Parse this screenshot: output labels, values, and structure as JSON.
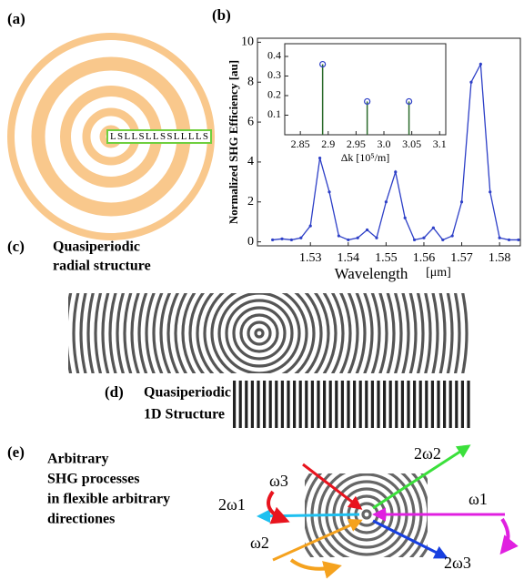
{
  "panels": {
    "a": {
      "label": "(a)",
      "sequence": "LSLLSLLSSLLLLS"
    },
    "b": {
      "label": "(b)"
    },
    "c": {
      "label": "(c)",
      "line1": "Quasiperiodic",
      "line2": "radial  structure"
    },
    "d": {
      "label": "(d)",
      "line1": "Quasiperiodic",
      "line2": "1D Structure"
    },
    "e": {
      "label": "(e)",
      "line1": "Arbitrary",
      "line2": "SHG processes",
      "line3": "in flexible arbitrary",
      "line4": "directiones",
      "omegas": [
        "ω3",
        "2ω2",
        "ω1",
        "2ω1",
        "ω2",
        "2ω3"
      ]
    }
  },
  "chart_data": [
    {
      "type": "line",
      "xlabel": "Wavelength",
      "xunit": "[μm]",
      "ylabel": "Normalized  SHG Efficiency [au]",
      "x": [
        1.52,
        1.5225,
        1.525,
        1.5275,
        1.53,
        1.5325,
        1.535,
        1.5375,
        1.54,
        1.5425,
        1.545,
        1.5475,
        1.55,
        1.5525,
        1.555,
        1.5575,
        1.56,
        1.5625,
        1.565,
        1.5675,
        1.57,
        1.5725,
        1.575,
        1.5775,
        1.58,
        1.5825,
        1.585
      ],
      "values": [
        0.1,
        0.15,
        0.1,
        0.2,
        0.8,
        4.2,
        2.5,
        0.3,
        0.1,
        0.2,
        0.6,
        0.2,
        2.0,
        3.5,
        1.2,
        0.1,
        0.2,
        0.7,
        0.1,
        0.3,
        2.0,
        8.0,
        8.9,
        2.5,
        0.2,
        0.1,
        0.1
      ],
      "color": "#2d3fc7",
      "xlim": [
        1.516,
        1.5855
      ],
      "ylim": [
        -0.2,
        10.2
      ],
      "xticks": [
        1.53,
        1.54,
        1.55,
        1.56,
        1.57,
        1.58
      ],
      "yticks": [
        0,
        2,
        4,
        6,
        8,
        10
      ]
    },
    {
      "type": "stem",
      "xlabel": "Δk [10⁵/m]",
      "x": [
        2.89,
        2.97,
        3.045
      ],
      "values": [
        0.36,
        0.17,
        0.17
      ],
      "color": "#2d3fc7",
      "xlim": [
        2.822,
        3.111
      ],
      "ylim": [
        0,
        0.465
      ],
      "xticks": [
        2.85,
        2.9,
        2.95,
        {
          "value": 3,
          "label": "3.0"
        },
        3.05,
        3.1
      ],
      "yticks": [
        0.1,
        0.2,
        0.3,
        0.4
      ]
    }
  ]
}
